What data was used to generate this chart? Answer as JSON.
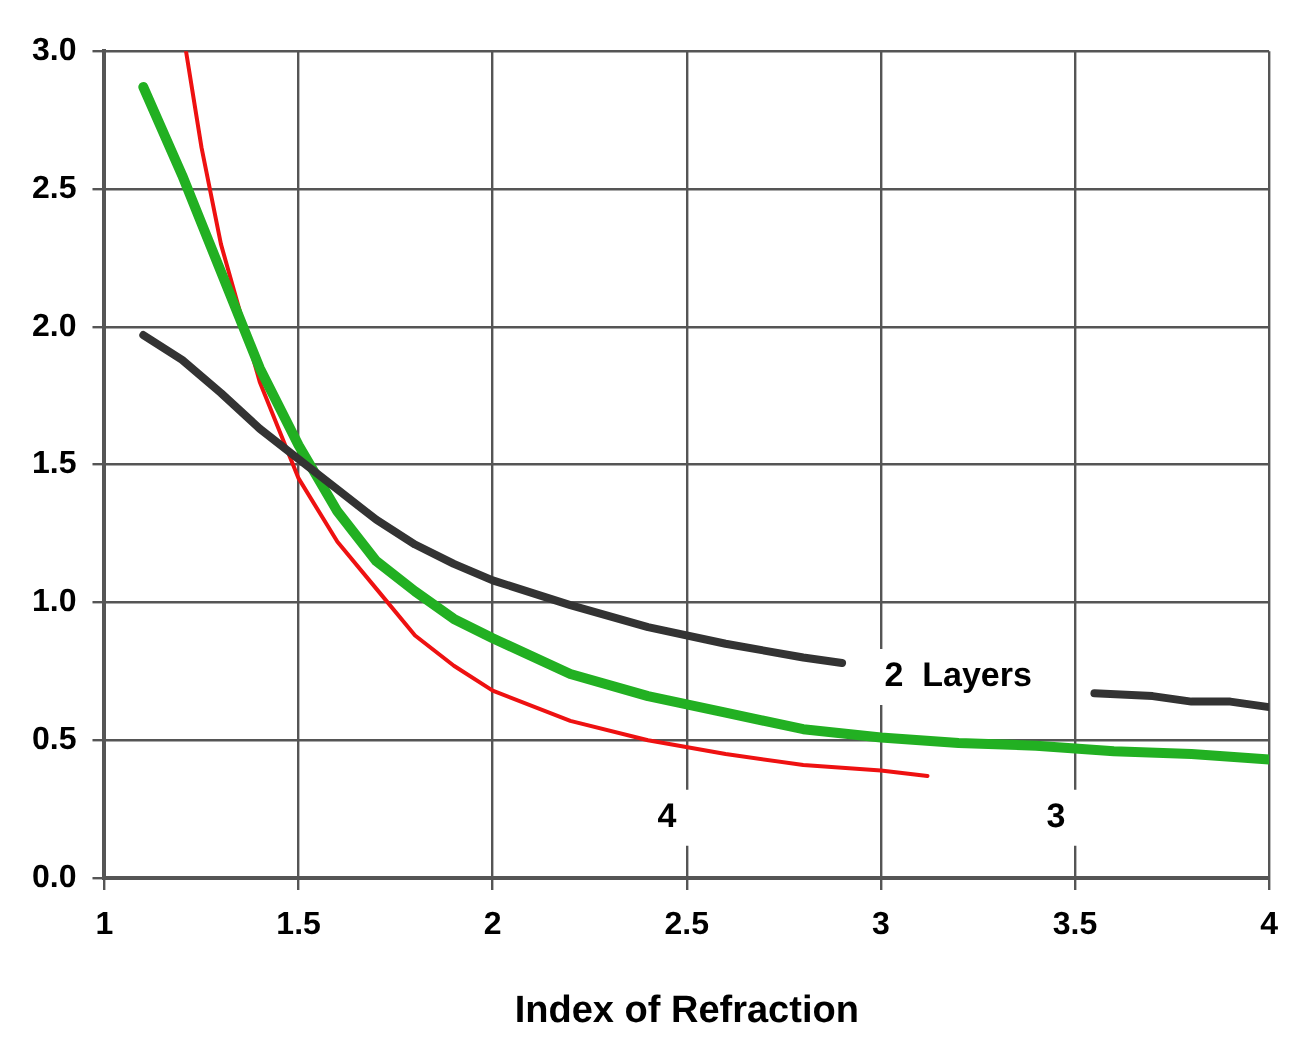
{
  "chart_data": {
    "type": "line",
    "xlabel": "Index of Refraction",
    "xlim": [
      1,
      4
    ],
    "xticks": [
      1,
      1.5,
      2,
      2.5,
      3,
      3.5,
      4
    ],
    "ylim": [
      0,
      3
    ],
    "yticks": [
      {
        "value": 0,
        "label": "0.0"
      },
      {
        "value": 0.5,
        "label": "0.5"
      },
      {
        "value": 1,
        "label": "1.0"
      },
      {
        "value": 1.5,
        "label": "1.5"
      },
      {
        "value": 2,
        "label": "2.0"
      },
      {
        "value": 2.5,
        "label": "2.5"
      },
      {
        "value": 3,
        "label": "3.0"
      }
    ],
    "grid": true,
    "legend": false,
    "marker": "none",
    "line_style": "solid",
    "series": [
      {
        "color": "#333333",
        "x": [
          1.1,
          1.2,
          1.3,
          1.4,
          1.5,
          1.6,
          1.7,
          1.8,
          1.9,
          2.0,
          2.2,
          2.4,
          2.6,
          2.8,
          2.9,
          3.2,
          3.55,
          3.7,
          3.8,
          3.9,
          4.0
        ],
        "values": [
          1.97,
          1.88,
          1.76,
          1.63,
          1.52,
          1.41,
          1.3,
          1.21,
          1.14,
          1.08,
          0.99,
          0.91,
          0.85,
          0.8,
          0.78,
          null,
          0.67,
          0.66,
          0.64,
          0.64,
          0.62
        ]
      },
      {
        "color": "#22b022",
        "x": [
          1.1,
          1.2,
          1.3,
          1.4,
          1.5,
          1.6,
          1.7,
          1.8,
          1.9,
          2.0,
          2.2,
          2.4,
          2.6,
          2.8,
          3.0,
          3.2,
          3.4,
          3.6,
          3.8,
          4.0
        ],
        "values": [
          2.87,
          2.55,
          2.2,
          1.85,
          1.57,
          1.33,
          1.15,
          1.04,
          0.94,
          0.87,
          0.74,
          0.66,
          0.6,
          0.54,
          0.51,
          0.49,
          0.48,
          0.46,
          0.45,
          0.43
        ]
      },
      {
        "color": "#ee1111",
        "x": [
          1.21,
          1.25,
          1.3,
          1.4,
          1.5,
          1.6,
          1.7,
          1.8,
          1.9,
          2.0,
          2.2,
          2.4,
          2.6,
          2.8,
          3.0,
          3.12
        ],
        "values": [
          3.0,
          2.65,
          2.3,
          1.8,
          1.45,
          1.22,
          1.05,
          0.88,
          0.77,
          0.68,
          0.57,
          0.5,
          0.45,
          0.41,
          0.39,
          0.37
        ]
      }
    ],
    "annotations": [
      "2  Layers",
      "4",
      "3"
    ]
  }
}
